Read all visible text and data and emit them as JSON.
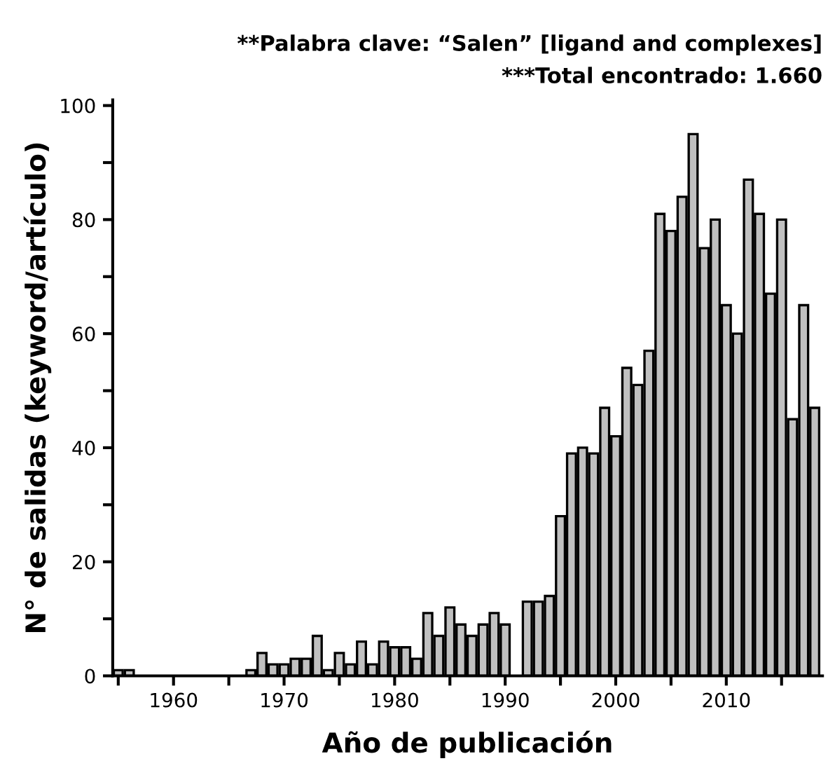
{
  "chart_data": {
    "type": "bar",
    "annotations": [
      "**Palabra clave: “Salen” [ligand and complexes]",
      "***Total encontrado: 1.660"
    ],
    "xlabel": "Año de publicación",
    "ylabel": "N° de salidas (keyword/artículo)",
    "x": [
      1955,
      1956,
      1967,
      1968,
      1969,
      1970,
      1971,
      1972,
      1973,
      1974,
      1975,
      1976,
      1977,
      1978,
      1979,
      1980,
      1981,
      1982,
      1983,
      1984,
      1985,
      1986,
      1987,
      1988,
      1989,
      1990,
      1991,
      1992,
      1993,
      1994,
      1995,
      1996,
      1997,
      1998,
      1999,
      2000,
      2001,
      2002,
      2003,
      2004,
      2005,
      2006,
      2007,
      2008,
      2009,
      2010,
      2011,
      2012,
      2013,
      2014,
      2015,
      2016,
      2017,
      2018
    ],
    "values": [
      1,
      1,
      1,
      4,
      2,
      2,
      3,
      3,
      7,
      1,
      4,
      2,
      6,
      2,
      6,
      5,
      5,
      3,
      11,
      7,
      12,
      9,
      7,
      9,
      11,
      9,
      null,
      13,
      13,
      14,
      28,
      39,
      40,
      39,
      47,
      42,
      54,
      51,
      57,
      81,
      78,
      84,
      95,
      75,
      80,
      65,
      60,
      87,
      81,
      67,
      80,
      45,
      65,
      47
    ],
    "color": "#c0c0c0",
    "xlim": [
      1954.5,
      2018.7
    ],
    "xticks": [
      {
        "value": 1955,
        "label": null
      },
      1960,
      {
        "value": 1965,
        "label": null
      },
      1970,
      {
        "value": 1975,
        "label": null
      },
      1980,
      {
        "value": 1985,
        "label": null
      },
      1990,
      {
        "value": 1995,
        "label": null
      },
      2000,
      {
        "value": 2005,
        "label": null
      },
      2010,
      {
        "value": 2015,
        "label": null
      }
    ],
    "ylim": [
      0,
      101
    ],
    "yticks": [
      0,
      {
        "value": 10,
        "label": null
      },
      20,
      {
        "value": 30,
        "label": null
      },
      40,
      {
        "value": 50,
        "label": null
      },
      60,
      {
        "value": 70,
        "label": null
      },
      80,
      {
        "value": 90,
        "label": null
      },
      100
    ],
    "grid": false,
    "legend": false
  }
}
